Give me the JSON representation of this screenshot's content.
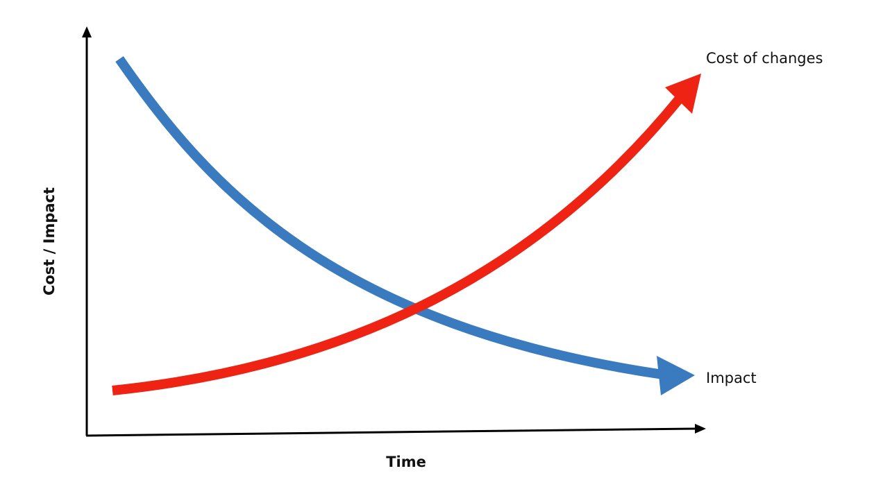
{
  "axes": {
    "x_label": "Time",
    "y_label": "Cost / Impact"
  },
  "curves": [
    {
      "label": "Cost of changes"
    },
    {
      "label": "Impact"
    }
  ]
}
